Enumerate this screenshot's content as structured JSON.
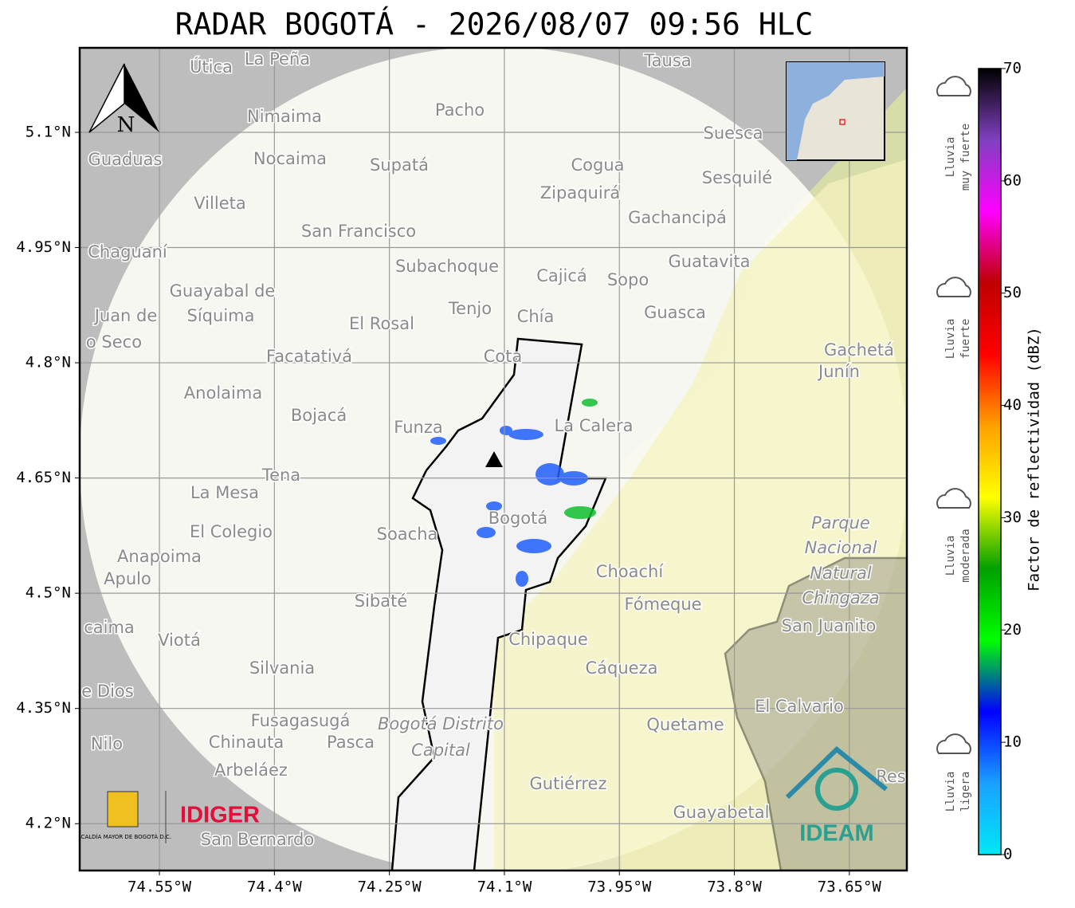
{
  "map": {
    "title": "RADAR BOGOTÁ - 2026/08/07 09:56 HLC",
    "xlim": [
      -74.654,
      -73.575
    ],
    "ylim": [
      4.139,
      5.21
    ],
    "xticks": [
      {
        "value": -74.55,
        "label": "74.55°W"
      },
      {
        "value": -74.4,
        "label": "74.4°W"
      },
      {
        "value": -74.25,
        "label": "74.25°W"
      },
      {
        "value": -74.1,
        "label": "74.1°W"
      },
      {
        "value": -73.95,
        "label": "73.95°W"
      },
      {
        "value": -73.8,
        "label": "73.8°W"
      },
      {
        "value": -73.65,
        "label": "73.65°W"
      }
    ],
    "yticks": [
      {
        "value": 5.1,
        "label": "5.1°N"
      },
      {
        "value": 4.95,
        "label": "4.95°N"
      },
      {
        "value": 4.8,
        "label": "4.8°N"
      },
      {
        "value": 4.65,
        "label": "4.65°N"
      },
      {
        "value": 4.5,
        "label": "4.5°N"
      },
      {
        "value": 4.35,
        "label": "4.35°N"
      },
      {
        "value": 4.2,
        "label": "4.2°N"
      }
    ],
    "grid": true,
    "north": "N",
    "places": [
      "La Peña",
      "Útica",
      "Tausa",
      "Pacho",
      "Nimaima",
      "Suesca",
      "Guaduas",
      "Nocaima",
      "Supatá",
      "Cogua",
      "Sesquilé",
      "Zipaquirá",
      "Villeta",
      "Gachancipá",
      "San Francisco",
      "Chaguaní",
      "Guatavita",
      "Subachoque",
      "Cajicá",
      "Sopo",
      "Guayabal de",
      "Síquima",
      "Juan de",
      "Tenjo",
      "Chía",
      "Guasca",
      "El Rosal",
      "o Seco",
      "Facatativá",
      "Cota",
      "Gachetá",
      "Junín",
      "Anolaima",
      "Bojacá",
      "Funza",
      "La Calera",
      "Tena",
      "La Mesa",
      "Soacha",
      "Bogotá",
      "El Colegio",
      "Anapoima",
      "Apulo",
      "Choachí",
      "Fómeque",
      "Sibaté",
      "San Juanito",
      "caima",
      "Viotá",
      "Chipaque",
      "Silvania",
      "Cáqueza",
      "e Dios",
      "El Calvario",
      "Fusagasugá",
      "Quetame",
      "Nilo",
      "Chinauta",
      "Pasca",
      "Arbeláez",
      "Gutiérrez",
      "Res",
      "Guayabetal",
      "San Bernardo"
    ],
    "park_labels": [
      "Parque",
      "Nacional",
      "Natural",
      "Chingaza"
    ],
    "district_labels": [
      "Bogotá Distrito",
      "Capital"
    ],
    "logos": {
      "alcaldia": "ALCALDÍA MAYOR DE BOGOTÁ D.C.",
      "idiger": "IDIGER",
      "ideam": "IDEAM"
    },
    "colorbar": {
      "label": "Factor de reflectividad (dBZ)",
      "lim": [
        0,
        70
      ],
      "ticks": [
        0,
        10,
        20,
        30,
        40,
        50,
        60,
        70
      ],
      "colors": [
        "#00e8f8",
        "#1aa0ff",
        "#0000ff",
        "#00ff00",
        "#00a000",
        "#ffff00",
        "#ffa000",
        "#ff0000",
        "#c00000",
        "#ff00ff",
        "#8040c0",
        "#000000"
      ]
    },
    "rain_categories": [
      {
        "lines": [
          "Lluvia",
          "muy fuerte"
        ]
      },
      {
        "lines": [
          "Lluvia",
          "fuerte"
        ]
      },
      {
        "lines": [
          "Lluvia",
          "moderada"
        ]
      },
      {
        "lines": [
          "Lluvia",
          "ligera"
        ]
      }
    ]
  }
}
